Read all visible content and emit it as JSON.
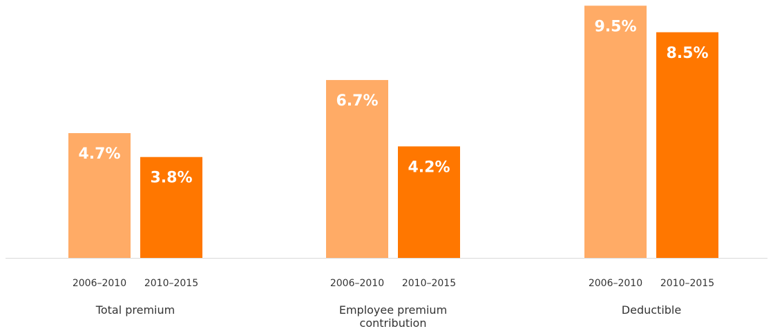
{
  "chart_data": {
    "type": "bar",
    "title": "",
    "xlabel": "",
    "ylabel": "",
    "ylim": [
      0,
      10
    ],
    "grid": false,
    "legend": "none",
    "categories": [
      "Total premium",
      "Employee premium contribution",
      "Deductible"
    ],
    "category_label_lines": [
      [
        "Total premium"
      ],
      [
        "Employee premium",
        "contribution"
      ],
      [
        "Deductible"
      ]
    ],
    "series": [
      {
        "name": "2006–2010",
        "color": "#FFAB66",
        "values": [
          4.7,
          6.7,
          9.5
        ],
        "labels": [
          "4.7%",
          "6.7%",
          "9.5%"
        ]
      },
      {
        "name": "2010–2015",
        "color": "#FF7700",
        "values": [
          3.8,
          4.2,
          8.5
        ],
        "labels": [
          "3.8%",
          "4.2%",
          "8.5%"
        ]
      }
    ],
    "baseline_color": "#D9D9D9"
  }
}
